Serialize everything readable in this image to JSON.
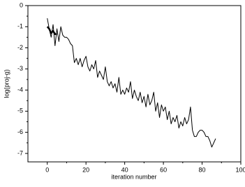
{
  "chart_data": {
    "type": "line",
    "x_label": "iteration number",
    "y_label": "log(proj-g)",
    "xlim": [
      -10,
      100
    ],
    "xticks": [
      0,
      20,
      40,
      60,
      80,
      100
    ],
    "ylim": [
      -7.4,
      0
    ],
    "yticks": [
      0,
      -1,
      -2,
      -3,
      -4,
      -5,
      -6,
      -7
    ],
    "series": [
      {
        "color": "#000000",
        "width": 1,
        "x": [
          0,
          1,
          2,
          3,
          4,
          5,
          6,
          7,
          8,
          9,
          10,
          11,
          12,
          13,
          14,
          15,
          16,
          17,
          18,
          19,
          20,
          21,
          22,
          23,
          24,
          25,
          26,
          27,
          28,
          29,
          30,
          31,
          32,
          33,
          34,
          35,
          36,
          37,
          38,
          39,
          40,
          41,
          42,
          43,
          44,
          45,
          46,
          47,
          48,
          49,
          50,
          51,
          52,
          53,
          54,
          55,
          56,
          57,
          58,
          59,
          60,
          61,
          62,
          63,
          64,
          65,
          66,
          67,
          68,
          69,
          70,
          71,
          72,
          73,
          74,
          75,
          76,
          77,
          78,
          79,
          80,
          81,
          82,
          83,
          84,
          85,
          86,
          87
        ],
        "values": [
          -0.6,
          -1.1,
          -1.5,
          -0.9,
          -1.9,
          -1.1,
          -1.7,
          -1.0,
          -1.4,
          -1.5,
          -1.5,
          -1.6,
          -1.8,
          -1.9,
          -2.7,
          -2.5,
          -2.8,
          -2.5,
          -2.9,
          -2.6,
          -2.4,
          -2.9,
          -3.1,
          -2.8,
          -3.0,
          -2.6,
          -3.4,
          -3.1,
          -3.3,
          -3.5,
          -2.9,
          -3.6,
          -3.8,
          -3.6,
          -3.9,
          -3.7,
          -4.1,
          -3.4,
          -4.2,
          -4.0,
          -4.2,
          -3.9,
          -4.1,
          -3.6,
          -4.4,
          -4.0,
          -4.3,
          -4.5,
          -4.1,
          -4.6,
          -4.3,
          -4.8,
          -4.2,
          -4.7,
          -4.5,
          -4.1,
          -5.0,
          -4.6,
          -5.3,
          -4.7,
          -5.0,
          -4.8,
          -5.4,
          -5.0,
          -5.6,
          -5.3,
          -5.5,
          -5.2,
          -5.8,
          -5.5,
          -5.7,
          -5.3,
          -5.6,
          -5.4,
          -4.8,
          -5.9,
          -6.2,
          -6.2,
          -6.0,
          -5.9,
          -5.9,
          -6.0,
          -6.2,
          -6.2,
          -6.4,
          -6.7,
          -6.5,
          -6.3
        ]
      },
      {
        "color": "#000000",
        "width": 2.5,
        "x": [
          0,
          1,
          2,
          3,
          4,
          5
        ],
        "values": [
          -1.0,
          -1.1,
          -1.3,
          -1.2,
          -1.35,
          -1.35
        ]
      }
    ]
  }
}
